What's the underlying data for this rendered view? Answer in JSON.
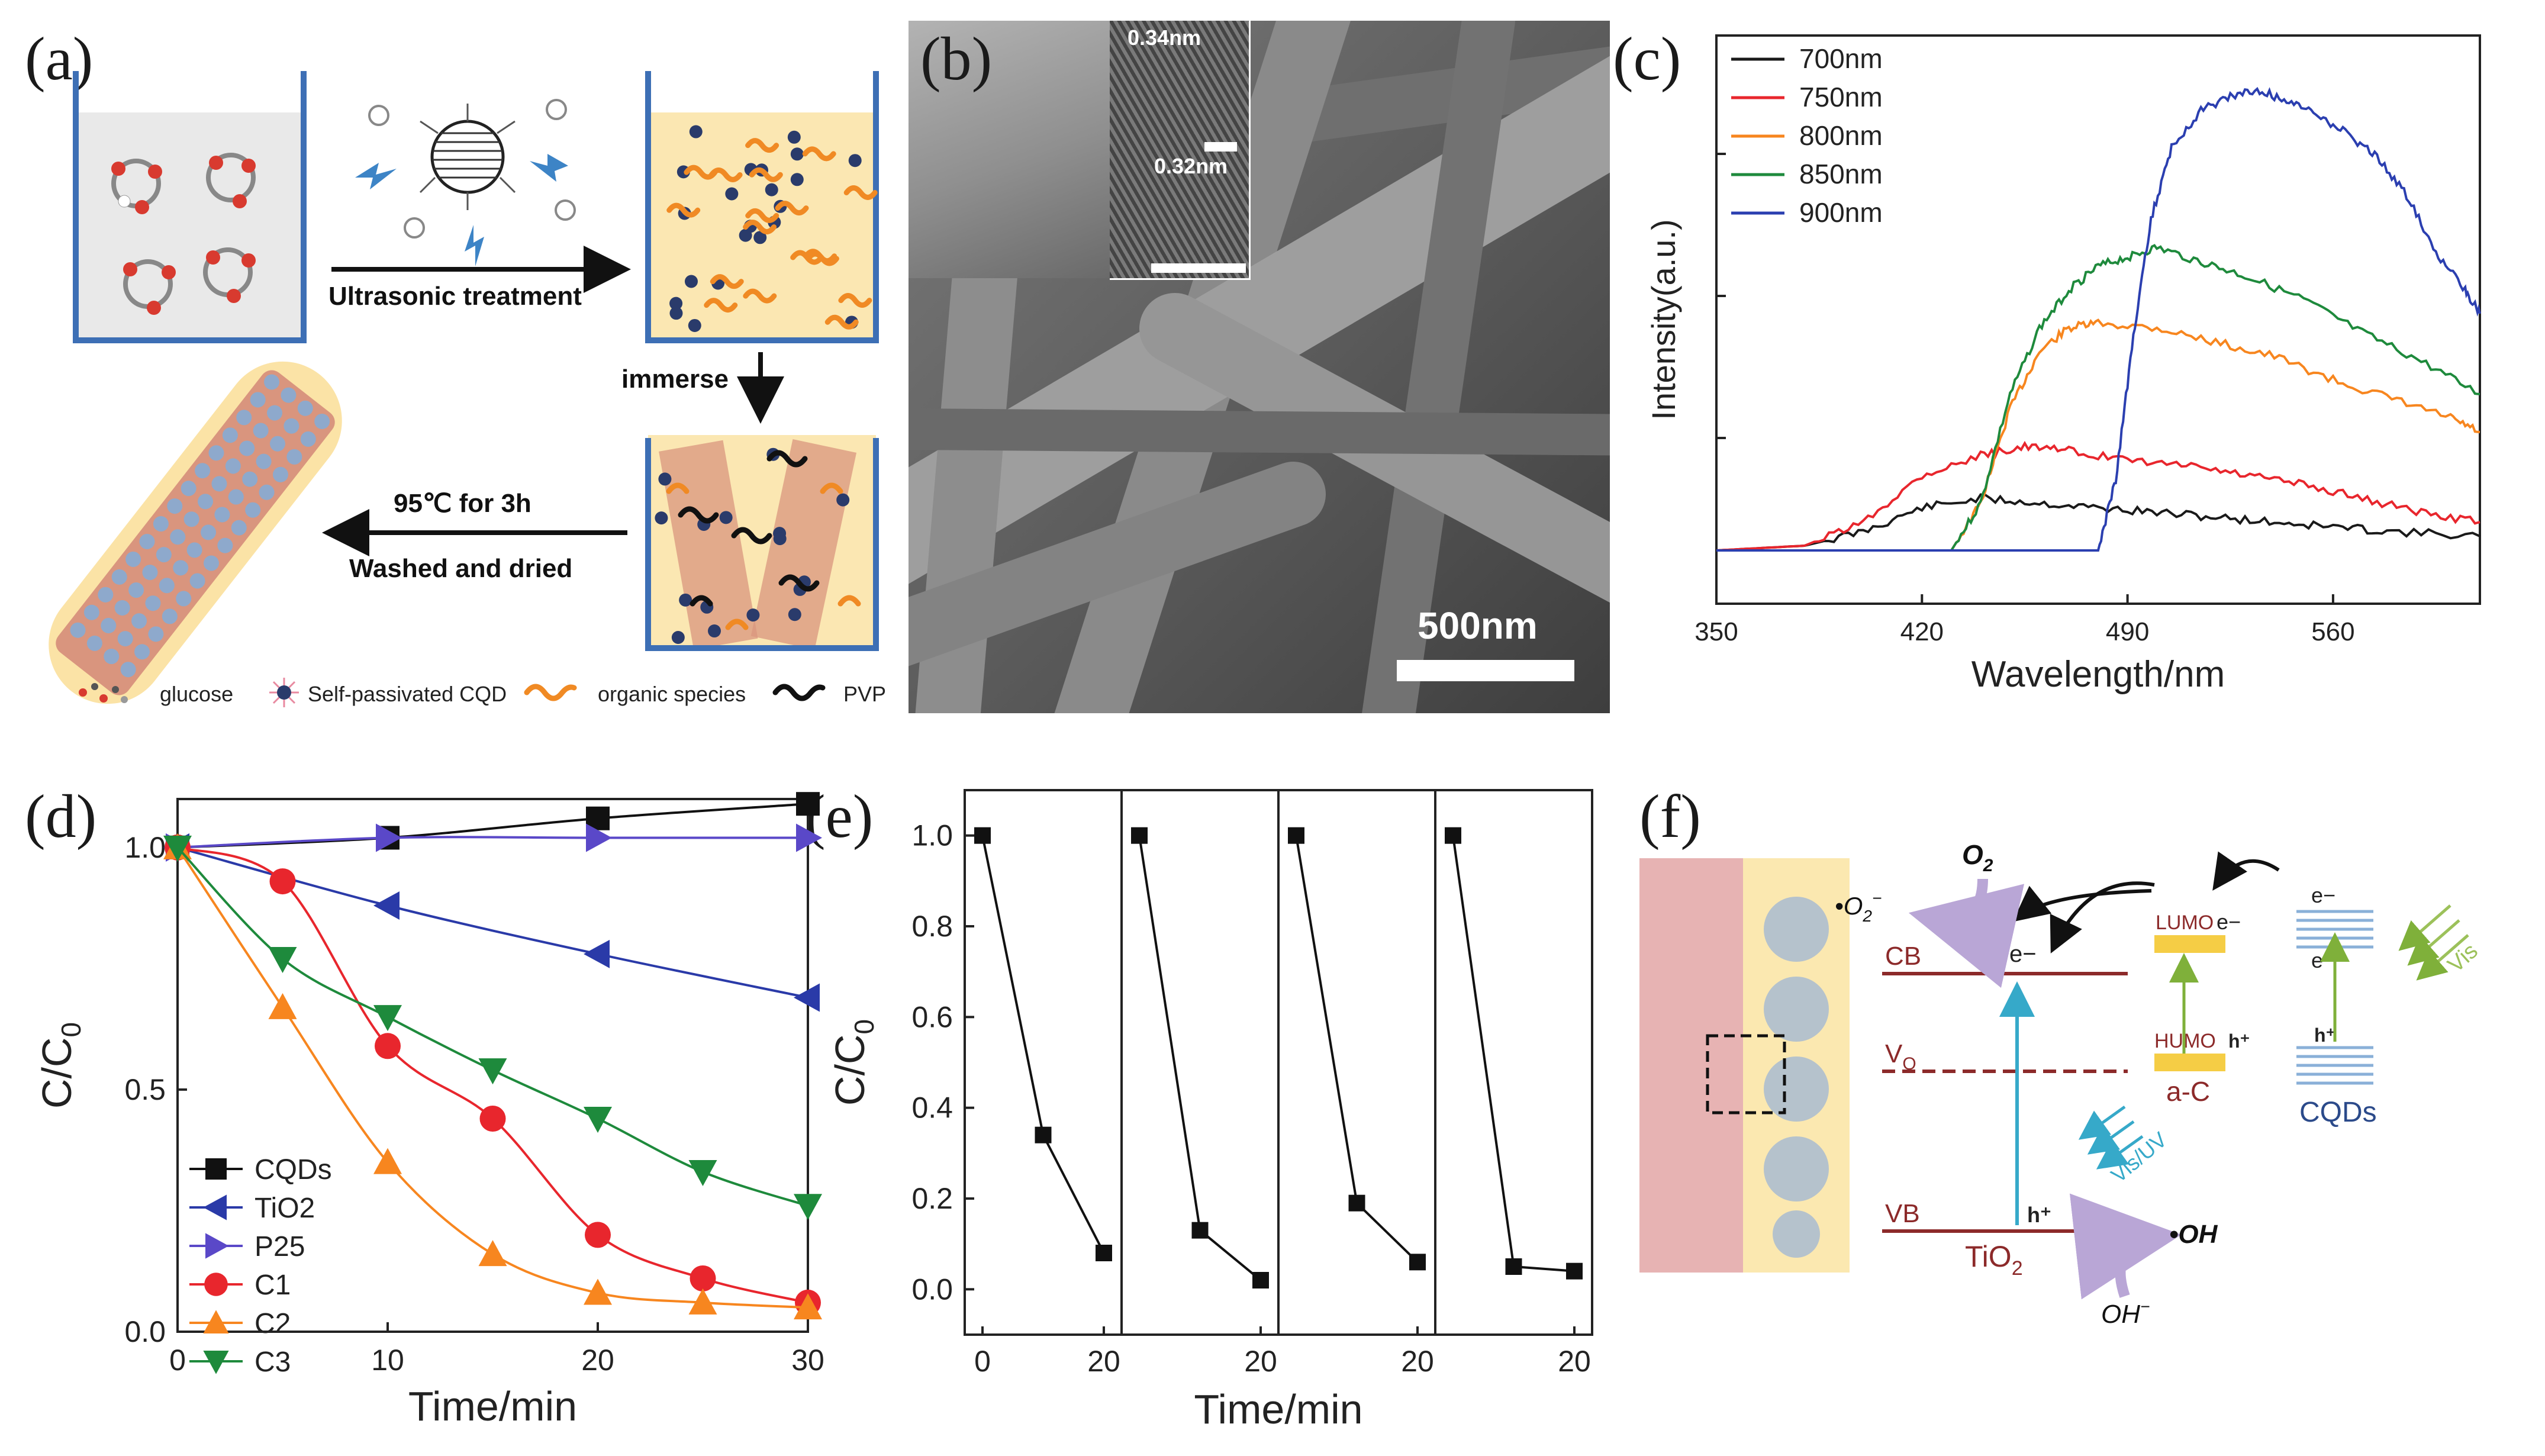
{
  "figure": {
    "panel_labels": [
      "(a)",
      "(b)",
      "(c)",
      "(d)",
      "(e)",
      "(f)"
    ]
  },
  "panel_a": {
    "arrow1_label": "Ultrasonic treatment",
    "arrow2_label": "immerse",
    "arrow3_label_top": "95℃ for 3h",
    "arrow3_label_bottom": "Washed and dried",
    "legend": [
      "glucose",
      "Self-passivated CQD",
      "organic species",
      "PVP"
    ]
  },
  "panel_b": {
    "scale_bar": "500nm",
    "lattice_1": "0.34nm",
    "lattice_2": "0.32nm"
  },
  "panel_f": {
    "cb": "CB",
    "vb": "VB",
    "vo": "V",
    "vo_sub": "O",
    "tio2": "TiO",
    "tio2_sub": "2",
    "lumo": "LUMO",
    "humo": "HUMO",
    "ac": "a-C",
    "cqds": "CQDs",
    "o2": "O",
    "o2_sub": "2",
    "superoxide": "•O",
    "superoxide_sub": "2",
    "superoxide_sup": "−",
    "oh_radical": "•OH",
    "oh_minus": "OH",
    "oh_minus_sup": "−",
    "electron": "e−",
    "hole": "h⁺",
    "vis": "Vis",
    "visuv": "Vis/UV"
  },
  "chart_data": [
    {
      "id": "c",
      "type": "line",
      "title": "",
      "xlabel": "Wavelength/nm",
      "ylabel": "Intensity(a.u.)",
      "xlim": [
        350,
        610
      ],
      "ylim": [
        0,
        1
      ],
      "xticks": [
        350,
        420,
        490,
        560
      ],
      "legend_position": "top-left",
      "series": [
        {
          "name": "700nm",
          "color": "#1a1a1a",
          "x": [
            350,
            380,
            400,
            420,
            440,
            460,
            480,
            500,
            520,
            540,
            560,
            580,
            610
          ],
          "y": [
            0.0,
            0.01,
            0.04,
            0.09,
            0.11,
            0.1,
            0.09,
            0.08,
            0.07,
            0.06,
            0.05,
            0.04,
            0.03
          ]
        },
        {
          "name": "750nm",
          "color": "#e8262d",
          "x": [
            350,
            380,
            400,
            420,
            440,
            455,
            470,
            490,
            510,
            530,
            550,
            570,
            590,
            610
          ],
          "y": [
            0.0,
            0.01,
            0.06,
            0.16,
            0.2,
            0.22,
            0.21,
            0.19,
            0.18,
            0.16,
            0.14,
            0.11,
            0.08,
            0.06
          ]
        },
        {
          "name": "800nm",
          "color": "#f7861f",
          "x": [
            350,
            430,
            440,
            450,
            460,
            470,
            480,
            500,
            520,
            540,
            560,
            580,
            600,
            610
          ],
          "y": [
            0.0,
            0.0,
            0.1,
            0.3,
            0.42,
            0.47,
            0.48,
            0.47,
            0.44,
            0.41,
            0.36,
            0.32,
            0.28,
            0.25
          ]
        },
        {
          "name": "850nm",
          "color": "#1e8a3c",
          "x": [
            350,
            430,
            440,
            450,
            460,
            470,
            480,
            490,
            500,
            515,
            530,
            550,
            570,
            590,
            610
          ],
          "y": [
            0.0,
            0.0,
            0.1,
            0.33,
            0.47,
            0.55,
            0.6,
            0.62,
            0.64,
            0.61,
            0.58,
            0.53,
            0.46,
            0.4,
            0.33
          ]
        },
        {
          "name": "900nm",
          "color": "#2b3fb0",
          "x": [
            350,
            480,
            486,
            492,
            498,
            505,
            515,
            525,
            535,
            545,
            555,
            565,
            575,
            585,
            595,
            605,
            610
          ],
          "y": [
            0.0,
            0.0,
            0.15,
            0.45,
            0.7,
            0.85,
            0.93,
            0.96,
            0.97,
            0.95,
            0.92,
            0.88,
            0.83,
            0.75,
            0.63,
            0.55,
            0.5
          ]
        }
      ]
    },
    {
      "id": "d",
      "type": "line",
      "title": "",
      "xlabel": "Time/min",
      "ylabel": "C/C",
      "ylabel_sub": "0",
      "xlim": [
        0,
        30
      ],
      "ylim": [
        0,
        1.1
      ],
      "xticks": [
        0,
        10,
        20,
        30
      ],
      "yticks": [
        0.0,
        0.5,
        1.0
      ],
      "ytick_labels": [
        "0.0",
        "0.5",
        "1.0"
      ],
      "legend_position": "bottom-left",
      "series": [
        {
          "name": "CQDs",
          "color": "#111111",
          "marker": "square",
          "x": [
            0,
            10,
            20,
            30
          ],
          "y": [
            1.0,
            1.02,
            1.06,
            1.09
          ]
        },
        {
          "name": "TiO2",
          "color": "#2a3aa8",
          "marker": "triangle-left",
          "x": [
            0,
            10,
            20,
            30
          ],
          "y": [
            1.0,
            0.88,
            0.78,
            0.69
          ]
        },
        {
          "name": "P25",
          "color": "#5a48c8",
          "marker": "triangle-right",
          "x": [
            0,
            10,
            20,
            30
          ],
          "y": [
            1.0,
            1.02,
            1.02,
            1.02
          ]
        },
        {
          "name": "C1",
          "color": "#e8262d",
          "marker": "circle",
          "x": [
            0,
            5,
            10,
            15,
            20,
            25,
            30
          ],
          "y": [
            1.0,
            0.93,
            0.59,
            0.44,
            0.2,
            0.11,
            0.06
          ]
        },
        {
          "name": "C2",
          "color": "#f7861f",
          "marker": "triangle-up",
          "x": [
            0,
            5,
            10,
            15,
            20,
            25,
            30
          ],
          "y": [
            1.0,
            0.67,
            0.35,
            0.16,
            0.08,
            0.06,
            0.05
          ]
        },
        {
          "name": "C3",
          "color": "#1e8a3c",
          "marker": "triangle-down",
          "x": [
            0,
            5,
            10,
            15,
            20,
            25,
            30
          ],
          "y": [
            1.0,
            0.77,
            0.65,
            0.54,
            0.44,
            0.33,
            0.26
          ]
        }
      ]
    },
    {
      "id": "e",
      "type": "line",
      "title": "",
      "xlabel": "Time/min",
      "ylabel": "C/C",
      "ylabel_sub": "0",
      "ylim": [
        -0.1,
        1.1
      ],
      "yticks": [
        0.0,
        0.2,
        0.4,
        0.6,
        0.8,
        1.0
      ],
      "ytick_labels": [
        "0.0",
        "0.2",
        "0.4",
        "0.6",
        "0.8",
        "1.0"
      ],
      "cycle_xticks": [
        "0",
        "20",
        "20",
        "20",
        "20"
      ],
      "cycles": [
        {
          "x": [
            0,
            10,
            20
          ],
          "y": [
            1.0,
            0.34,
            0.08
          ]
        },
        {
          "x": [
            0,
            10,
            20
          ],
          "y": [
            1.0,
            0.13,
            0.02
          ]
        },
        {
          "x": [
            0,
            10,
            20
          ],
          "y": [
            1.0,
            0.19,
            0.06
          ]
        },
        {
          "x": [
            0,
            10,
            20
          ],
          "y": [
            1.0,
            0.05,
            0.04
          ]
        }
      ]
    }
  ]
}
